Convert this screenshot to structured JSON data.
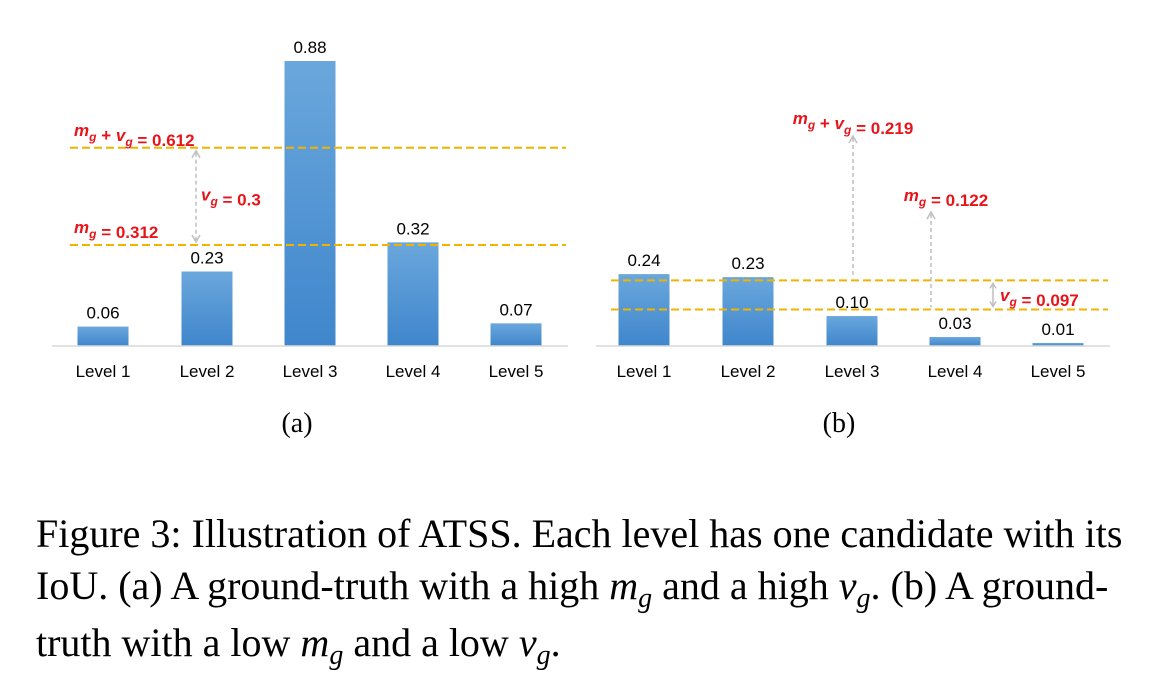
{
  "chart_data": [
    {
      "type": "bar",
      "panel": "(a)",
      "categories": [
        "Level 1",
        "Level 2",
        "Level 3",
        "Level 4",
        "Level 5"
      ],
      "values": [
        0.06,
        0.23,
        0.88,
        0.32,
        0.07
      ],
      "value_labels": [
        "0.06",
        "0.23",
        "0.88",
        "0.32",
        "0.07"
      ],
      "bar_color": "#5b9bd5",
      "ylim": [
        0,
        0.95
      ],
      "reference_lines": [
        {
          "value": 0.612,
          "label": "m_g + v_g = 0.612",
          "color": "#f0b400"
        },
        {
          "value": 0.312,
          "label": "m_g = 0.312",
          "color": "#f0b400"
        }
      ],
      "spread_label": "v_g = 0.3"
    },
    {
      "type": "bar",
      "panel": "(b)",
      "categories": [
        "Level 1",
        "Level 2",
        "Level 3",
        "Level 4",
        "Level 5"
      ],
      "values": [
        0.24,
        0.23,
        0.1,
        0.03,
        0.01
      ],
      "value_labels": [
        "0.24",
        "0.23",
        "0.10",
        "0.03",
        "0.01"
      ],
      "bar_color": "#5b9bd5",
      "ylim": [
        0,
        0.3
      ],
      "reference_lines": [
        {
          "value": 0.219,
          "label": "m_g + v_g = 0.219",
          "color": "#f0b400"
        },
        {
          "value": 0.122,
          "label": "m_g = 0.122",
          "color": "#f0b400"
        }
      ],
      "spread_label": "v_g = 0.097"
    }
  ],
  "annotation_color": "#e8141a",
  "caption": {
    "lead": "Figure 3: Illustration of ATSS. Each level has one candidate with its IoU. (a) A ground-truth with a high",
    "var_m": "m",
    "sub_g": "g",
    "and_high": "and a high",
    "var_v": "v",
    "b_part": ". (b) A ground-truth with a low",
    "and_low": "and a low",
    "end": "."
  }
}
